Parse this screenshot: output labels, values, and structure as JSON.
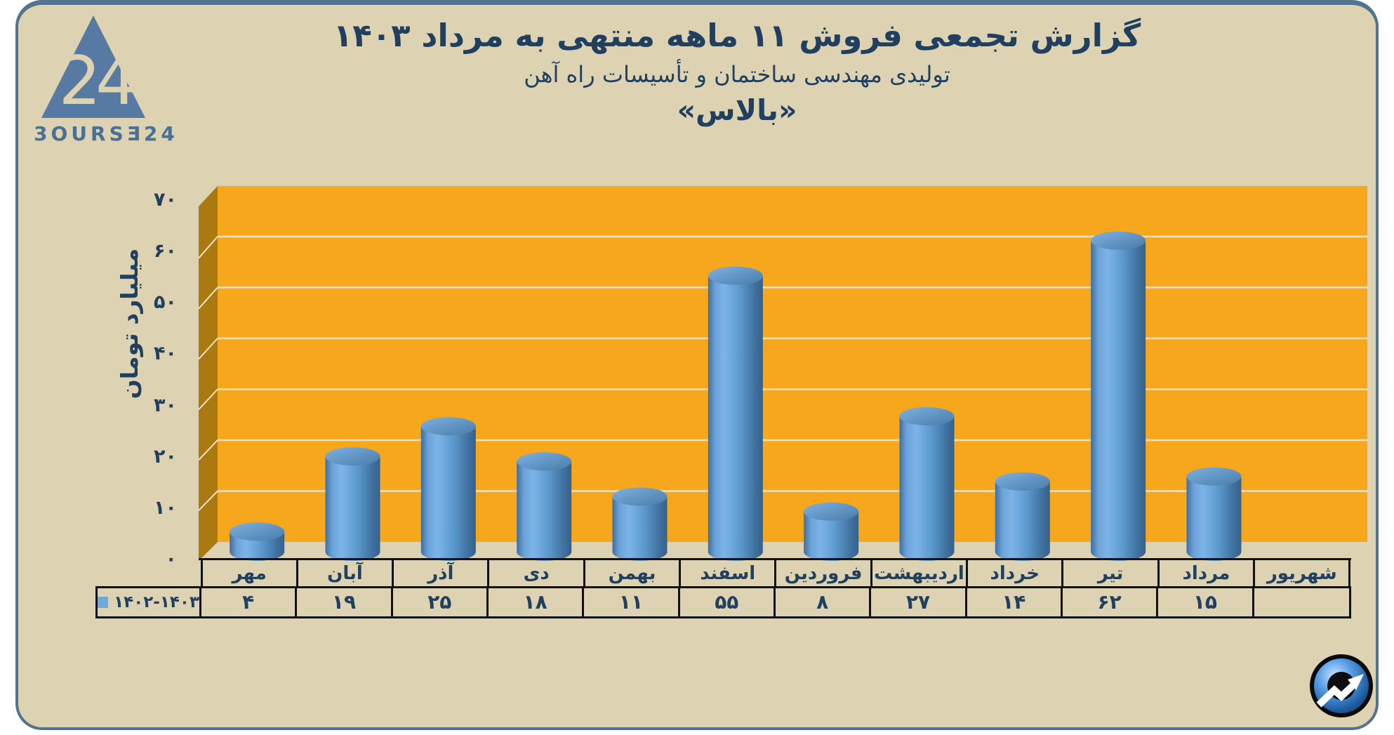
{
  "panel": {
    "background": "#ddd2b1",
    "border_color": "#52748f",
    "outside_background": "#ffffff"
  },
  "logo": {
    "wordmark": "3OURSƎ24",
    "numeral": "24",
    "triangle_color": "#567aa2",
    "wordmark_color": "#4b7095"
  },
  "chart_data": {
    "type": "bar",
    "style": "3d-cylinder",
    "title": "گزارش تجمعی فروش ۱۱ ماهه منتهی به مرداد ۱۴۰۳",
    "subtitle": "تولیدی مهندسی ساختمان و تأسیسات راه آهن",
    "subtitle2": "«بالاس»",
    "ylabel": "میلیارد تومان",
    "xlabel": "",
    "categories": [
      "مهر",
      "آبان",
      "آذر",
      "دی",
      "بهمن",
      "اسفند",
      "فروردین",
      "اردیبهشت",
      "خرداد",
      "تیر",
      "مرداد",
      "شهریور"
    ],
    "series": [
      {
        "name": "۱۴۰۲-۱۴۰۳",
        "values": [
          4,
          19,
          25,
          18,
          11,
          55,
          8,
          27,
          14,
          62,
          15,
          null
        ]
      }
    ],
    "ylim": [
      0,
      70
    ],
    "ytick_step": 10,
    "digit_style": "persian",
    "grid": true,
    "legend_position": "left-cell-of-value-table",
    "value_table_shown": true,
    "colors": {
      "bar_mid": "#5b9bd5",
      "bar_light": "#7db4e8",
      "bar_dark": "#3a6a9b",
      "bar_top_light": "#7db1e0",
      "bar_top_dark": "#4a7cab",
      "plot_bg": "#f7a71c",
      "side_wall": "#aa7a10",
      "gridline": "#f0e3c3",
      "text": "#21405f",
      "table_border": "#111111",
      "legend_marker": "#6fa8dc"
    }
  },
  "footer_icon": {
    "name": "stock-trend-arrow-logo"
  }
}
